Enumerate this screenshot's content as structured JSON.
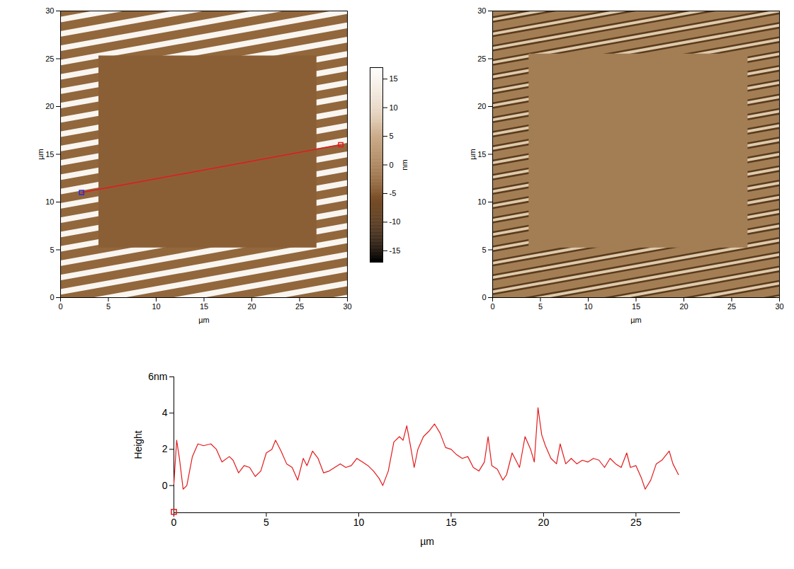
{
  "chart_data": [
    {
      "type": "image",
      "xlabel": "µm",
      "ylabel": "µm",
      "xlim": [
        0,
        30
      ],
      "ylim": [
        0,
        30
      ],
      "xticks": [
        0,
        5,
        10,
        15,
        20,
        25,
        30
      ],
      "yticks": [
        0,
        5,
        10,
        15,
        20,
        25,
        30
      ],
      "background": -3,
      "stripe_value": 15,
      "stripes": [
        [
          0,
          -5.4,
          30,
          0
        ],
        [
          0,
          -3.9,
          30,
          1.5
        ],
        [
          0,
          -2.4,
          30,
          3.0
        ],
        [
          0,
          -0.9,
          30,
          4.5
        ],
        [
          0,
          0.6,
          30,
          6.0
        ],
        [
          0,
          2.1,
          30,
          7.5
        ],
        [
          0,
          3.6,
          30,
          9.0
        ],
        [
          0,
          5.1,
          30,
          10.5
        ],
        [
          0,
          6.6,
          30,
          12.0
        ],
        [
          0,
          8.1,
          30,
          13.5
        ],
        [
          0,
          9.6,
          30,
          15.0
        ],
        [
          0,
          11.1,
          30,
          16.5
        ],
        [
          0,
          12.6,
          30,
          18.0
        ],
        [
          0,
          14.1,
          30,
          19.5
        ],
        [
          0,
          15.6,
          30,
          21.0
        ],
        [
          0,
          17.1,
          30,
          22.5
        ],
        [
          0,
          18.6,
          30,
          24.0
        ],
        [
          0,
          20.1,
          30,
          25.5
        ],
        [
          0,
          21.6,
          30,
          27.0
        ],
        [
          0,
          23.1,
          30,
          28.5
        ],
        [
          0,
          24.6,
          30,
          30.0
        ],
        [
          0,
          26.1,
          30,
          31.5
        ],
        [
          0,
          27.6,
          30,
          33.0
        ],
        [
          0,
          29.1,
          30,
          34.5
        ]
      ],
      "square": {
        "x": [
          4,
          26.8
        ],
        "y": [
          5.2,
          25.3
        ],
        "value": -4
      },
      "profile_line": {
        "x": [
          2.2,
          29.3
        ],
        "y": [
          11,
          16
        ],
        "color": "#e31a1c",
        "marker": "square",
        "colors": [
          "#2b2bd9",
          "#e31a1c"
        ]
      },
      "colorbar": {
        "range": [
          -17,
          17
        ],
        "ticks": [
          -15,
          -10,
          -5,
          0,
          5,
          10,
          15
        ],
        "label": "nm"
      }
    },
    {
      "type": "image",
      "xlabel": "µm",
      "ylabel": "µm",
      "xlim": [
        0,
        30
      ],
      "ylim": [
        0,
        30
      ],
      "xticks": [
        0,
        5,
        10,
        15,
        20,
        25,
        30
      ],
      "yticks": [
        0,
        5,
        10,
        15,
        20,
        25,
        30
      ],
      "zlim": [
        -1,
        1
      ],
      "background": 0,
      "stripe_value": 0.7,
      "stripe_edge_value": -0.7,
      "stripes": [
        [
          0,
          -5.4,
          30,
          0
        ],
        [
          0,
          -3.9,
          30,
          1.5
        ],
        [
          0,
          -2.4,
          30,
          3.0
        ],
        [
          0,
          -0.9,
          30,
          4.5
        ],
        [
          0,
          0.6,
          30,
          6.0
        ],
        [
          0,
          2.1,
          30,
          7.5
        ],
        [
          0,
          3.6,
          30,
          9.0
        ],
        [
          0,
          5.1,
          30,
          10.5
        ],
        [
          0,
          6.6,
          30,
          12.0
        ],
        [
          0,
          8.1,
          30,
          13.5
        ],
        [
          0,
          9.6,
          30,
          15.0
        ],
        [
          0,
          11.1,
          30,
          16.5
        ],
        [
          0,
          12.6,
          30,
          18.0
        ],
        [
          0,
          14.1,
          30,
          19.5
        ],
        [
          0,
          15.6,
          30,
          21.0
        ],
        [
          0,
          17.1,
          30,
          22.5
        ],
        [
          0,
          18.6,
          30,
          24.0
        ],
        [
          0,
          20.1,
          30,
          25.5
        ],
        [
          0,
          21.6,
          30,
          27.0
        ],
        [
          0,
          23.1,
          30,
          28.5
        ],
        [
          0,
          24.6,
          30,
          30.0
        ],
        [
          0,
          26.1,
          30,
          31.5
        ],
        [
          0,
          27.6,
          30,
          33.0
        ],
        [
          0,
          29.1,
          30,
          34.5
        ]
      ],
      "square": {
        "x": [
          3.8,
          26.7
        ],
        "y": [
          5.2,
          25.5
        ],
        "value": 0
      }
    },
    {
      "type": "line",
      "xlabel": "µm",
      "ylabel": "Height",
      "xlim": [
        0,
        27.4
      ],
      "ylim": [
        -1.5,
        6
      ],
      "xticks": [
        0,
        5,
        10,
        15,
        20,
        25
      ],
      "yticks": [
        0,
        2,
        4,
        {
          "value": 6,
          "label": "6nm"
        }
      ],
      "color": "#e31a1c",
      "cursor": {
        "x": 0,
        "y": -1.45,
        "marker": "square"
      },
      "x": [
        0,
        0.15,
        0.3,
        0.5,
        0.7,
        1.0,
        1.3,
        1.6,
        2.0,
        2.3,
        2.6,
        3.0,
        3.2,
        3.5,
        3.8,
        4.1,
        4.4,
        4.7,
        5.0,
        5.3,
        5.5,
        5.8,
        6.1,
        6.4,
        6.7,
        7.0,
        7.2,
        7.5,
        7.8,
        8.1,
        8.4,
        8.7,
        9.0,
        9.3,
        9.6,
        9.9,
        10.2,
        10.5,
        10.8,
        11.1,
        11.3,
        11.6,
        11.9,
        12.2,
        12.4,
        12.6,
        12.8,
        13.0,
        13.2,
        13.5,
        13.8,
        14.1,
        14.4,
        14.7,
        15.0,
        15.3,
        15.6,
        15.9,
        16.2,
        16.5,
        16.8,
        17.0,
        17.2,
        17.5,
        17.8,
        18.0,
        18.3,
        18.5,
        18.7,
        19.0,
        19.3,
        19.5,
        19.7,
        19.9,
        20.1,
        20.4,
        20.7,
        20.9,
        21.2,
        21.5,
        21.8,
        22.1,
        22.4,
        22.7,
        23.0,
        23.3,
        23.6,
        23.9,
        24.2,
        24.5,
        24.7,
        25.0,
        25.3,
        25.5,
        25.8,
        26.1,
        26.4,
        26.8,
        27.0,
        27.3
      ],
      "values": [
        0.1,
        2.5,
        1.5,
        -0.2,
        0,
        1.6,
        2.3,
        2.2,
        2.3,
        2.0,
        1.3,
        1.6,
        1.4,
        0.7,
        1.1,
        1.0,
        0.5,
        0.8,
        1.8,
        2.0,
        2.5,
        1.9,
        1.2,
        1.0,
        0.3,
        1.5,
        1.1,
        1.9,
        1.5,
        0.7,
        0.8,
        1.0,
        1.2,
        1.0,
        1.1,
        1.5,
        1.3,
        1.1,
        0.8,
        0.4,
        0,
        0.8,
        2.4,
        2.7,
        2.5,
        3.3,
        2.2,
        1.0,
        2.0,
        2.7,
        3.0,
        3.4,
        2.9,
        2.1,
        2.0,
        1.7,
        1.5,
        1.6,
        1.0,
        0.8,
        1.3,
        2.7,
        1.1,
        0.9,
        0.3,
        0.6,
        1.8,
        1.4,
        1.0,
        2.7,
        2.0,
        1.3,
        4.3,
        2.8,
        2.2,
        1.5,
        1.2,
        2.3,
        1.2,
        1.5,
        1.2,
        1.4,
        1.3,
        1.5,
        1.4,
        1.0,
        1.5,
        1.2,
        1.0,
        1.8,
        1.0,
        1.1,
        0.4,
        -0.2,
        0.3,
        1.2,
        1.4,
        1.9,
        1.2,
        0.6
      ]
    }
  ]
}
